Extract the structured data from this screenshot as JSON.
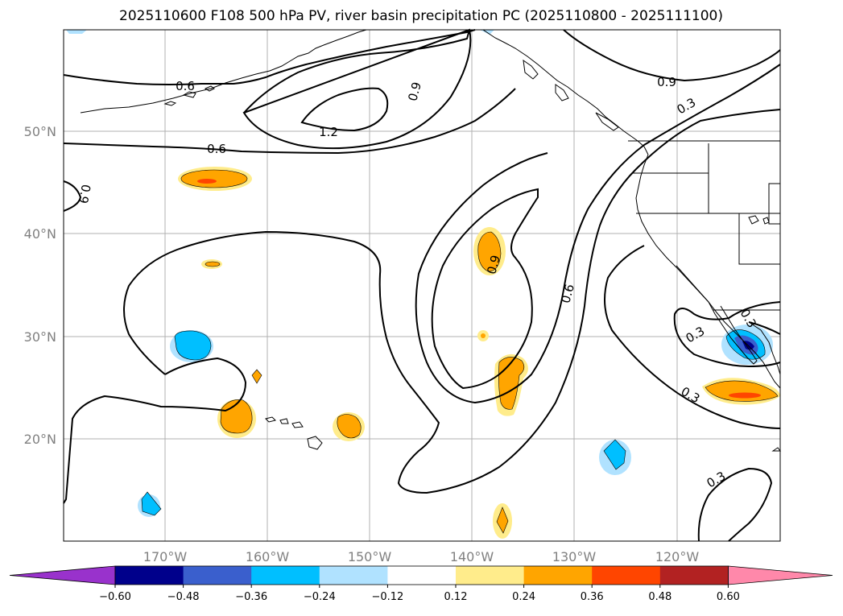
{
  "title": "2025110600 F108 500 hPa PV, river basin precipitation PC (2025110800 - 2025111100)",
  "map": {
    "lon_labels": [
      "170°W",
      "160°W",
      "150°W",
      "140°W",
      "130°W",
      "120°W"
    ],
    "lat_labels": [
      "50°N",
      "40°N",
      "30°N",
      "20°N"
    ],
    "contour_labels": [
      "0.6",
      "0.9",
      "1.2",
      "0.6",
      "0.9",
      "0.9",
      "0.3",
      "0.9",
      "0.6",
      "0.3",
      "0.3",
      "0.3",
      "0.3"
    ]
  },
  "colorbar": {
    "ticks": [
      "−0.60",
      "−0.48",
      "−0.36",
      "−0.24",
      "−0.12",
      "0.12",
      "0.24",
      "0.36",
      "0.48",
      "0.60"
    ],
    "colors": [
      "#9932cc",
      "#00008b",
      "#3a5fcd",
      "#00bfff",
      "#b0e2ff",
      "#ffffff",
      "#ffec8b",
      "#ffa500",
      "#ff4500",
      "#b22222",
      "#ff88aa"
    ]
  },
  "colors": {
    "orange": "#ffa500",
    "yellow": "#ffec8b",
    "red": "#ff4500",
    "blue": "#00bfff",
    "light_blue": "#b0e2ff",
    "dark_blue": "#3a5fcd",
    "navy": "#00008b"
  }
}
